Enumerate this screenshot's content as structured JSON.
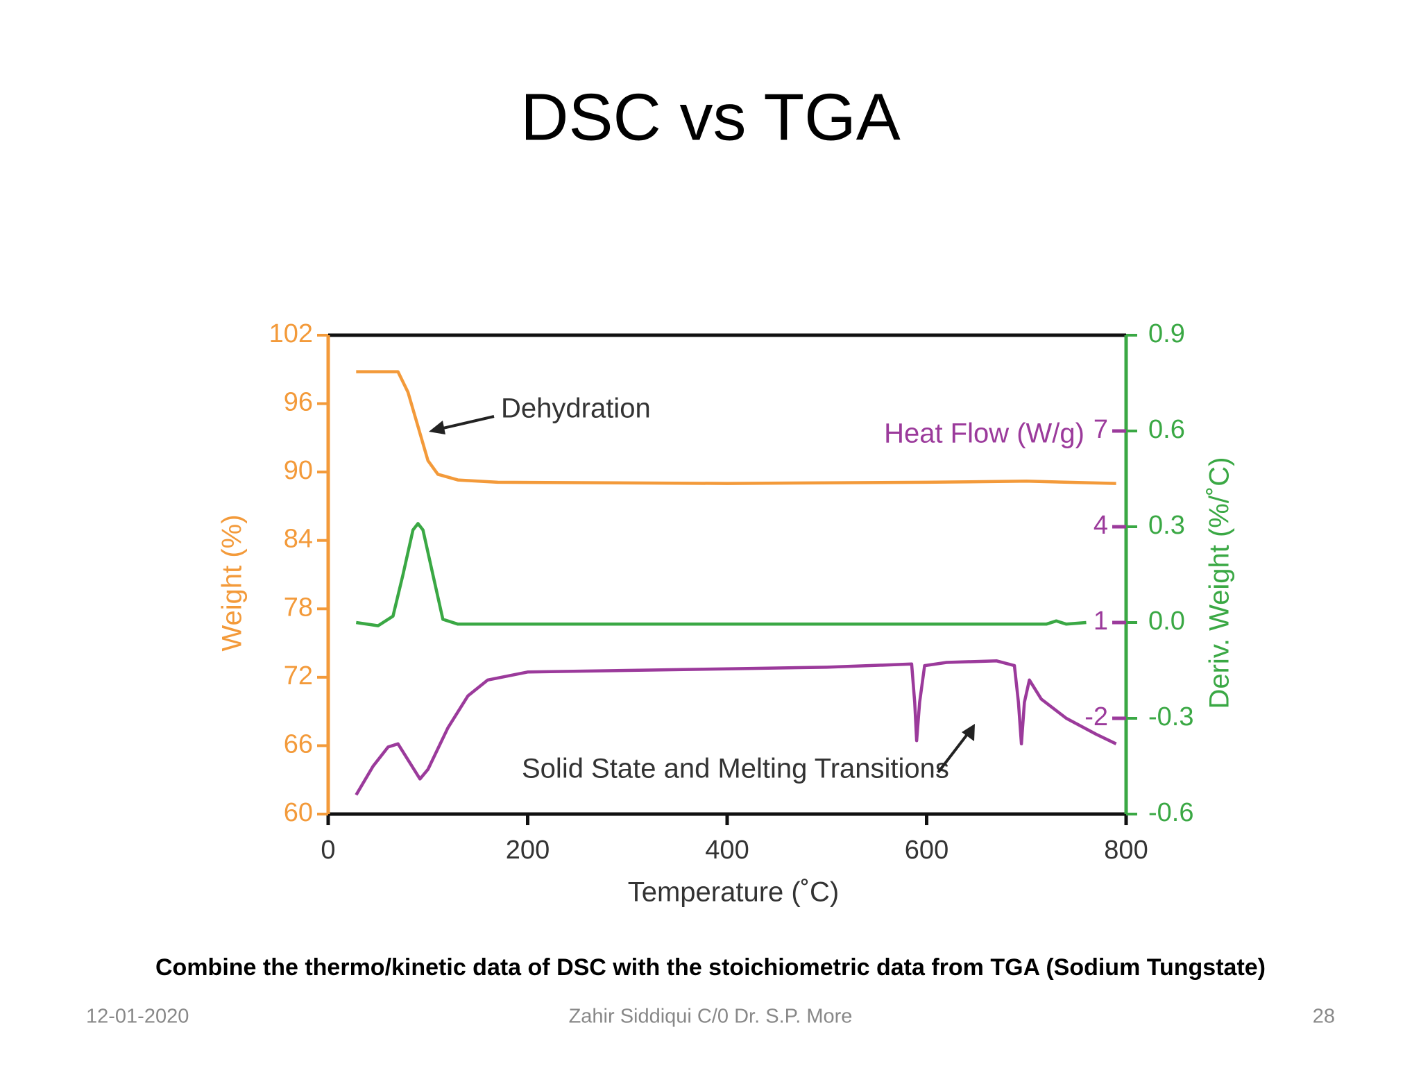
{
  "title": "DSC vs TGA",
  "caption": "Combine the thermo/kinetic data of DSC with the stoichiometric data from TGA (Sodium Tungstate)",
  "footer": {
    "date": "12-01-2020",
    "author": "Zahir Siddiqui C/0 Dr. S.P. More",
    "page": "28"
  },
  "chart_data": {
    "type": "line",
    "xlabel": "Temperature (˚C)",
    "ylabel": "Weight (%)",
    "y2label": "Deriv. Weight (%/˚C)",
    "y3label": "Heat Flow (W/g)",
    "annotations": [
      "Dehydration",
      "Solid State and Melting Transitions"
    ],
    "xlim": [
      0,
      800
    ],
    "xticks": [
      0,
      200,
      400,
      600,
      800
    ],
    "ylim": [
      60,
      102
    ],
    "yticks": [
      60,
      66,
      72,
      78,
      84,
      90,
      96,
      102
    ],
    "y2lim": [
      -0.6,
      0.9
    ],
    "y2ticks": [
      -0.6,
      -0.3,
      {
        "value": 0,
        "label": "0.0"
      },
      0.3,
      0.6,
      0.9
    ],
    "y3lim": [
      -5,
      10
    ],
    "y3ticks": [
      -2,
      1,
      4,
      7
    ],
    "grid": false,
    "series": [
      {
        "color": "#f39a3a",
        "axis": "y",
        "x": [
          28,
          70,
          80,
          90,
          100,
          110,
          130,
          170,
          400,
          600,
          700,
          790
        ],
        "values": [
          98.8,
          98.8,
          97,
          94,
          91,
          89.8,
          89.3,
          89.1,
          89.0,
          89.1,
          89.2,
          89.0
        ]
      },
      {
        "color": "#3aa844",
        "axis": "y2",
        "x": [
          28,
          50,
          65,
          75,
          85,
          90,
          95,
          105,
          115,
          130,
          400,
          720,
          730,
          740,
          760
        ],
        "values": [
          0.0,
          -0.01,
          0.02,
          0.15,
          0.29,
          0.31,
          0.29,
          0.15,
          0.01,
          -0.005,
          -0.005,
          -0.005,
          0.005,
          -0.005,
          0.0
        ]
      },
      {
        "color": "#9b3a9b",
        "axis": "y3",
        "x": [
          28,
          45,
          60,
          70,
          80,
          92,
          100,
          120,
          140,
          160,
          200,
          300,
          400,
          500,
          585,
          588,
          590,
          593,
          598,
          620,
          670,
          688,
          692,
          695,
          698,
          703,
          715,
          740,
          770,
          790
        ],
        "values": [
          -4.4,
          -3.5,
          -2.9,
          -2.8,
          -3.3,
          -3.9,
          -3.6,
          -2.3,
          -1.3,
          -0.8,
          -0.55,
          -0.5,
          -0.45,
          -0.4,
          -0.3,
          -1.5,
          -2.7,
          -1.5,
          -0.35,
          -0.25,
          -0.2,
          -0.35,
          -1.5,
          -2.8,
          -1.5,
          -0.8,
          -1.4,
          -2.0,
          -2.5,
          -2.8
        ]
      }
    ]
  }
}
